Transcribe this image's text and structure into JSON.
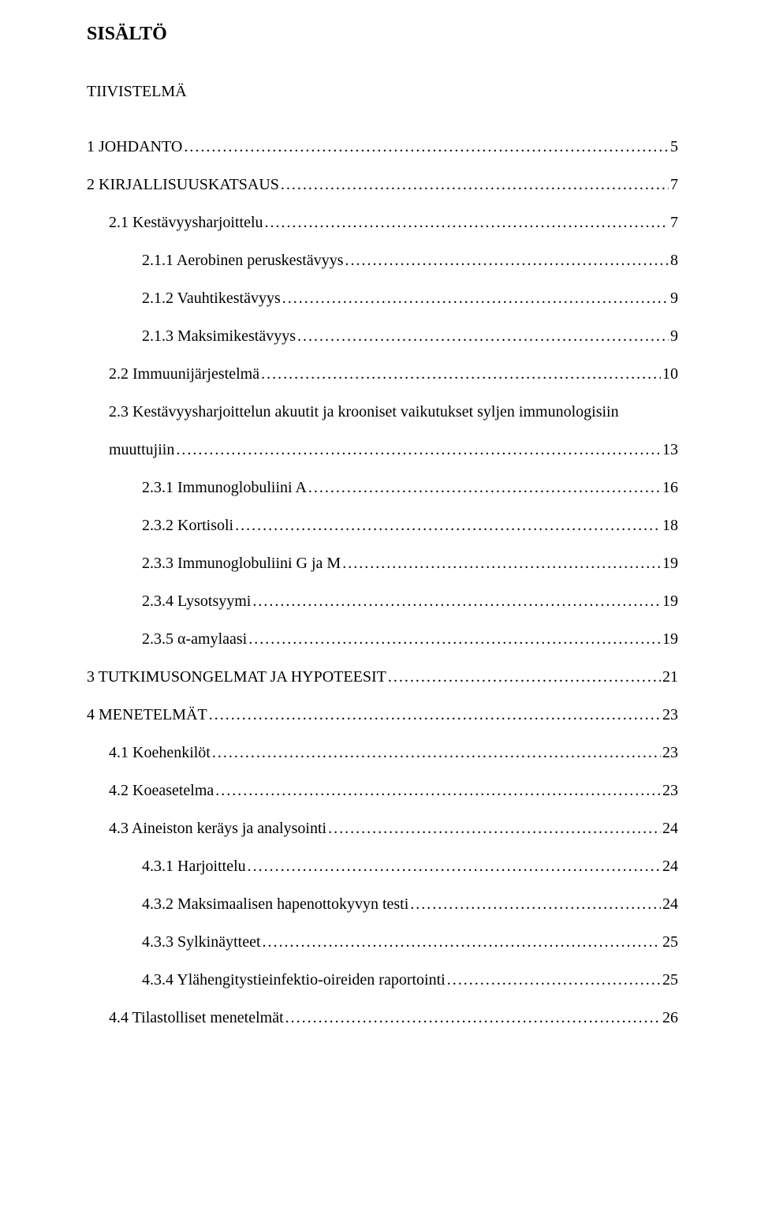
{
  "title": "SISÄLTÖ",
  "subtitle": "TIIVISTELMÄ",
  "text_color": "#000000",
  "background_color": "#ffffff",
  "font_family": "Times New Roman",
  "title_fontsize": 24,
  "body_fontsize": 20,
  "leader_char": ".",
  "entries": [
    {
      "label": "1 JOHDANTO",
      "page": "5",
      "indent": 0
    },
    {
      "label": "2 KIRJALLISUUSKATSAUS",
      "page": "7",
      "indent": 0
    },
    {
      "label": "2.1 Kestävyysharjoittelu",
      "page": "7",
      "indent": 1
    },
    {
      "label": "2.1.1 Aerobinen peruskestävyys",
      "page": "8",
      "indent": 2
    },
    {
      "label": "2.1.2 Vauhtikestävyys",
      "page": "9",
      "indent": 2
    },
    {
      "label": "2.1.3 Maksimikestävyys",
      "page": "9",
      "indent": 2
    },
    {
      "label": "2.2 Immuunijärjestelmä",
      "page": "10",
      "indent": 1
    },
    {
      "label": "2.3 Kestävyysharjoittelun akuutit ja krooniset vaikutukset syljen immunologisiin",
      "page": "",
      "indent": 1,
      "noLeader": true
    },
    {
      "label": "muuttujiin",
      "page": "13",
      "indent": 1
    },
    {
      "label": "2.3.1 Immunoglobuliini A",
      "page": "16",
      "indent": 2
    },
    {
      "label": "2.3.2 Kortisoli",
      "page": "18",
      "indent": 2
    },
    {
      "label": "2.3.3 Immunoglobuliini G ja M",
      "page": "19",
      "indent": 2
    },
    {
      "label": "2.3.4 Lysotsyymi",
      "page": "19",
      "indent": 2
    },
    {
      "label": "2.3.5 α-amylaasi",
      "page": "19",
      "indent": 2
    },
    {
      "label": "3 TUTKIMUSONGELMAT JA HYPOTEESIT",
      "page": "21",
      "indent": 0
    },
    {
      "label": "4 MENETELMÄT",
      "page": "23",
      "indent": 0
    },
    {
      "label": "4.1 Koehenkilöt",
      "page": "23",
      "indent": 1
    },
    {
      "label": "4.2 Koeasetelma",
      "page": "23",
      "indent": 1
    },
    {
      "label": "4.3 Aineiston keräys ja analysointi",
      "page": "24",
      "indent": 1
    },
    {
      "label": "4.3.1 Harjoittelu",
      "page": "24",
      "indent": 2
    },
    {
      "label": "4.3.2 Maksimaalisen hapenottokyvyn testi",
      "page": "24",
      "indent": 2
    },
    {
      "label": "4.3.3 Sylkinäytteet",
      "page": "25",
      "indent": 2
    },
    {
      "label": "4.3.4 Ylähengitystieinfektio-oireiden raportointi",
      "page": "25",
      "indent": 2
    },
    {
      "label": "4.4 Tilastolliset menetelmät",
      "page": "26",
      "indent": 1
    }
  ]
}
